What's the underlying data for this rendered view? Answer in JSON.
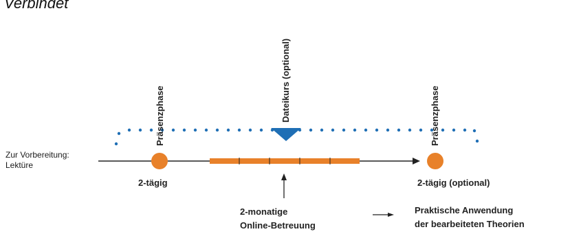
{
  "header": {
    "title": "Verbindet"
  },
  "preparation": {
    "line1": "Zur Vorbereitung:",
    "line2": "Lektüre"
  },
  "phase_left": {
    "vertical_label": "Präsenzphase",
    "caption": "2-tägig"
  },
  "phase_right": {
    "vertical_label": "Präsenzphase",
    "caption": "2-tägig (optional)"
  },
  "file_course": {
    "vertical_label": "Dateikurs (optional)"
  },
  "online": {
    "line1": "2-monatige",
    "line2": "Online-Betreuung"
  },
  "application": {
    "line1": "Praktische Anwendung",
    "line2": "der bearbeiteten Theorien"
  },
  "colors": {
    "orange": "#e8812a",
    "blue": "#1f6fb5",
    "line": "#222222"
  }
}
